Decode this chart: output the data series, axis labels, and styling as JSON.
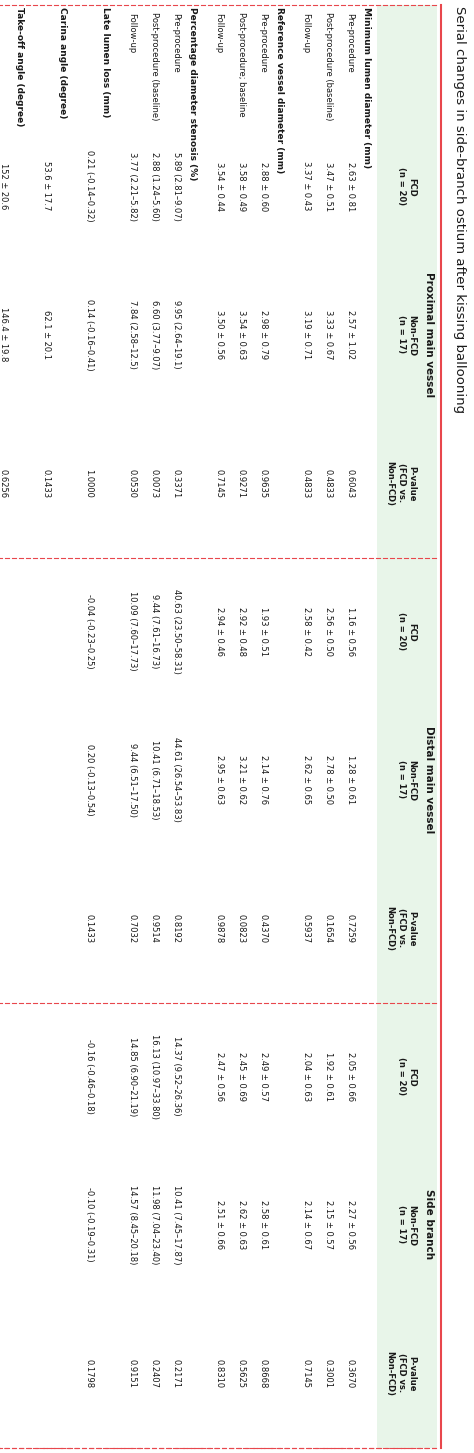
{
  "title": "Serial changes in side-branch ostium after kissing ballooning",
  "bg_color": "#ffffff",
  "header_bg": "#e8f5e9",
  "red_color": "#e8474c",
  "group_labels": [
    "Proximal main vessel",
    "Distal main vessel",
    "Side branch"
  ],
  "col_headers_per_group": [
    [
      "FCD\n(n = 20)",
      "Non-FCD\n(n = 17)",
      "P-value\n(FCD vs.\nNon-FCD)"
    ],
    [
      "FCD\n(n = 20)",
      "Non-FCD\n(n = 17)",
      "P-value\n(FCD vs.\nNon-FCD)"
    ],
    [
      "FCD\n(n = 20)",
      "Non-FCD\n(n = 17)",
      "P-value\n(FCD vs.\nNon-FCD)"
    ]
  ],
  "row_groups": [
    {
      "label": "Minimum lumen diameter (mm)",
      "rows": [
        {
          "label": "Pre-procedure",
          "values": [
            "2.63 ± 0.81",
            "2.57 ± 1.02",
            "0.6043",
            "1.16 ± 0.56",
            "1.28 ± 0.61",
            "0.7259",
            "2.05 ± 0.66",
            "2.27 ± 0.56",
            "0.3670"
          ]
        },
        {
          "label": "Post-procedure (baseline)",
          "values": [
            "3.47 ± 0.51",
            "3.33 ± 0.67",
            "0.4833",
            "2.56 ± 0.50",
            "2.78 ± 0.50",
            "0.1654",
            "1.92 ± 0.61",
            "2.15 ± 0.57",
            "0.3001"
          ]
        },
        {
          "label": "Follow-up",
          "values": [
            "3.37 ± 0.43",
            "3.19 ± 0.71",
            "0.4833",
            "2.58 ± 0.42",
            "2.62 ± 0.65",
            "0.5937",
            "2.04 ± 0.63",
            "2.14 ± 0.67",
            "0.7145"
          ]
        }
      ]
    },
    {
      "label": "Reference vessel diameter (mm)",
      "rows": [
        {
          "label": "Pre-procedure",
          "values": [
            "2.88 ± 0.60",
            "2.98 ± 0.79",
            "0.9635",
            "1.93 ± 0.51",
            "2.14 ± 0.76",
            "0.4370",
            "2.49 ± 0.57",
            "2.58 ± 0.61",
            "0.8668"
          ]
        },
        {
          "label": "Post-procedure; baseline",
          "values": [
            "3.58 ± 0.49",
            "3.54 ± 0.63",
            "0.9271",
            "2.92 ± 0.48",
            "3.21 ± 0.62",
            "0.0823",
            "2.45 ± 0.69",
            "2.62 ± 0.63",
            "0.5625"
          ]
        },
        {
          "label": "Follow-up",
          "values": [
            "3.54 ± 0.44",
            "3.50 ± 0.56",
            "0.7145",
            "2.94 ± 0.46",
            "2.95 ± 0.63",
            "0.9878",
            "2.47 ± 0.56",
            "2.51 ± 0.66",
            "0.8310"
          ]
        }
      ]
    },
    {
      "label": "Percentage diameter stenosis (%)",
      "rows": [
        {
          "label": "Pre-procedure",
          "values": [
            "5.89 (2.81–9.07)",
            "9.95 (2.64–19.1)",
            "0.3371",
            "40.63 (23.50–58.31)",
            "44.61 (26.54–53.83)",
            "0.8192",
            "14.37 (9.52–26.36)",
            "10.41 (7.45–17.87)",
            "0.2171"
          ]
        },
        {
          "label": "Post-procedure (baseline)",
          "values": [
            "2.88 (1.24–5.60)",
            "6.60 (3.77–9.07)",
            "0.0073",
            "9.44 (7.61–16.73)",
            "10.41 (6.71–18.53)",
            "0.9514",
            "16.13 (10.97–33.80)",
            "11.98 (7.04–23.40)",
            "0.2407"
          ]
        },
        {
          "label": "Follow-up",
          "values": [
            "3.77 (2.21–5.82)",
            "7.84 (2.58–12.5)",
            "0.0530",
            "10.09 (7.60–17.73)",
            "9.44 (6.51–17.50)",
            "0.7032",
            "14.85 (6.90–21.19)",
            "14.57 (8.45–20.18)",
            "0.9151"
          ]
        }
      ]
    },
    {
      "label": "Late lumen loss (mm)",
      "rows": [
        {
          "label": "",
          "values": [
            "0.21 (-0.14–0.32)",
            "0.14 (-0.16–0.41)",
            "1.0000",
            "-0.04 (-0.23–0.25)",
            "0.20 (-0.13–0.54)",
            "0.1433",
            "-0.16 (-0.46–0.18)",
            "-0.10 (-0.19–0.31)",
            "0.1798"
          ]
        }
      ]
    },
    {
      "label": "Carina angle (degree)",
      "rows": [
        {
          "label": "",
          "values": [
            "53.6 ± 17.7",
            "62.1 ± 20.1",
            "0.1433",
            "",
            "",
            "",
            "",
            "",
            ""
          ]
        }
      ]
    },
    {
      "label": "Take-off angle (degree)",
      "rows": [
        {
          "label": "",
          "values": [
            "152 ± 20.6",
            "146.4 ± 19.8",
            "0.6256",
            "",
            "",
            "",
            "",
            "",
            ""
          ]
        }
      ]
    }
  ],
  "figsize_landscape": [
    14.53,
    4.74
  ],
  "figsize_portrait": [
    4.74,
    14.53
  ],
  "dpi": 100
}
